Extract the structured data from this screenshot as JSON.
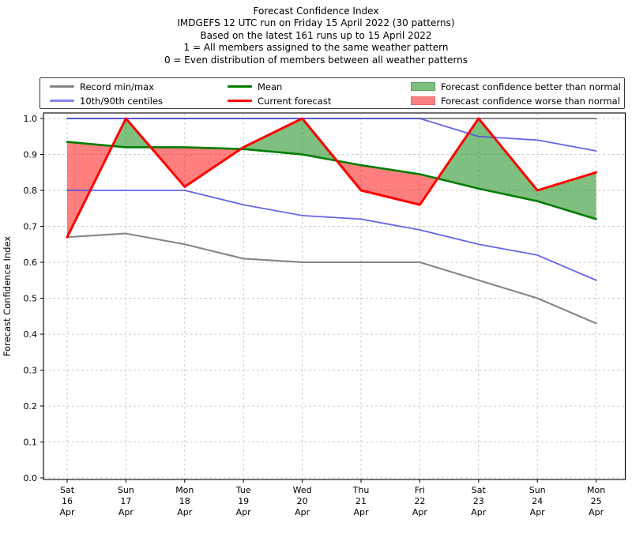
{
  "chart_data": {
    "type": "line",
    "title": "Forecast Confidence Index",
    "title_lines": [
      "Forecast Confidence Index",
      "IMDGEFS 12 UTC run on Friday 15 April 2022 (30 patterns)",
      "Based on the latest 161 runs up to 15 April 2022",
      "1 = All members assigned to the same weather pattern",
      "0 = Even distribution of members between all weather patterns"
    ],
    "ylabel": "Forecast Confidence Index",
    "xlabel": "",
    "grid": true,
    "ylim": [
      0.0,
      1.02
    ],
    "y_tick_labels": [
      "0.0",
      "0.1",
      "0.2",
      "0.3",
      "0.4",
      "0.5",
      "0.6",
      "0.7",
      "0.8",
      "0.9",
      "1.0"
    ],
    "x_tick_labels": [
      [
        "Sat",
        "16",
        "Apr"
      ],
      [
        "Sun",
        "17",
        "Apr"
      ],
      [
        "Mon",
        "18",
        "Apr"
      ],
      [
        "Tue",
        "19",
        "Apr"
      ],
      [
        "Wed",
        "20",
        "Apr"
      ],
      [
        "Thu",
        "21",
        "Apr"
      ],
      [
        "Fri",
        "22",
        "Apr"
      ],
      [
        "Sat",
        "23",
        "Apr"
      ],
      [
        "Sun",
        "24",
        "Apr"
      ],
      [
        "Mon",
        "25",
        "Apr"
      ]
    ],
    "series": [
      {
        "name": "Record max",
        "color": "#858585",
        "values": [
          1.0,
          1.0,
          1.0,
          1.0,
          1.0,
          1.0,
          1.0,
          1.0,
          1.0,
          1.0
        ]
      },
      {
        "name": "Record min",
        "color": "#858585",
        "values": [
          0.67,
          0.68,
          0.65,
          0.61,
          0.6,
          0.6,
          0.6,
          0.55,
          0.5,
          0.43
        ]
      },
      {
        "name": "90th centile",
        "color": "#4a4ae2",
        "values": [
          1.0,
          1.0,
          1.0,
          1.0,
          1.0,
          1.0,
          1.0,
          0.95,
          0.94,
          0.91
        ]
      },
      {
        "name": "10th centile",
        "color": "#4a4ae2",
        "values": [
          0.8,
          0.8,
          0.8,
          0.76,
          0.73,
          0.72,
          0.69,
          0.65,
          0.62,
          0.55
        ]
      },
      {
        "name": "Mean",
        "color": "#007d00",
        "values": [
          0.935,
          0.92,
          0.92,
          0.915,
          0.9,
          0.87,
          0.845,
          0.805,
          0.77,
          0.72
        ]
      },
      {
        "name": "Current forecast",
        "color": "#ff0000",
        "values": [
          0.67,
          1.0,
          0.81,
          0.92,
          1.0,
          0.8,
          0.76,
          1.0,
          0.8,
          0.85
        ]
      }
    ],
    "fill_between": {
      "upper": "Current forecast",
      "lower": "Mean",
      "positive_label": "Forecast confidence better than normal",
      "negative_label": "Forecast confidence worse than normal",
      "positive_color": "rgba(0,128,0,0.5)",
      "negative_color": "rgba(255,0,0,0.5)"
    },
    "legend_position": "top"
  },
  "legend": {
    "items": [
      {
        "label": "Record min/max",
        "swatch": "line",
        "color": "#858585"
      },
      {
        "label": "10th/90th centiles",
        "swatch": "line",
        "color": "#8585f0"
      },
      {
        "label": "Mean",
        "swatch": "line",
        "color": "#007d00"
      },
      {
        "label": "Current forecast",
        "swatch": "line",
        "color": "#ff0000"
      },
      {
        "label": "Forecast confidence better than normal",
        "swatch": "patch",
        "color": "#7fbf7f",
        "edge": "#59a359"
      },
      {
        "label": "Forecast confidence worse than normal",
        "swatch": "patch",
        "color": "#fa8181",
        "edge": "#e46a6a"
      }
    ]
  }
}
